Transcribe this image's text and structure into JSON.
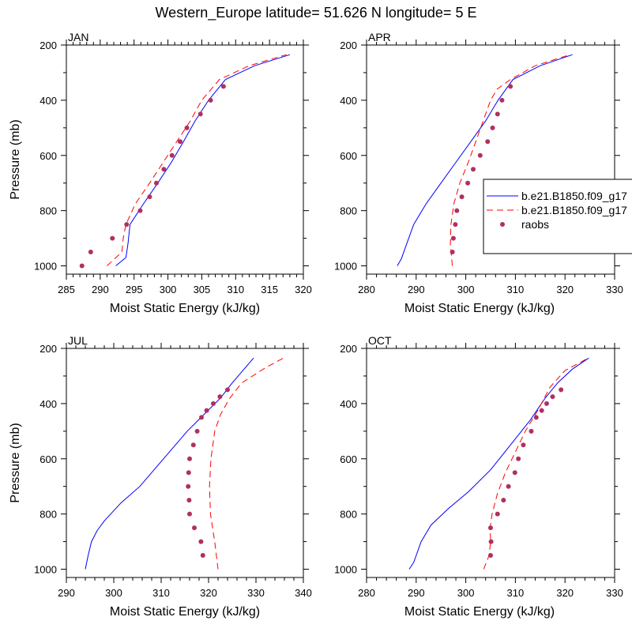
{
  "title": "Western_Europe  latitude= 51.626 N longitude= 5 E",
  "legend": {
    "entries": [
      "b.e21.B1850.f09_g17",
      "b.e21.B1850.f09_g17",
      "raobs"
    ]
  },
  "colors": {
    "model1": "#0000ff",
    "model2": "#ff0000",
    "raobs": "#b03060",
    "axes": "#000000"
  },
  "chart_data": [
    {
      "type": "line",
      "panel": "JAN",
      "title": "JAN",
      "xlabel": "Moist Static Energy (kJ/kg)",
      "ylabel": "Pressure (mb)",
      "xlim": [
        285,
        320
      ],
      "xticks": [
        285,
        290,
        295,
        300,
        305,
        310,
        315,
        320
      ],
      "ylim": [
        1030,
        200
      ],
      "yticks": [
        200,
        400,
        600,
        800,
        1000
      ],
      "grid": false,
      "series": [
        {
          "name": "b.e21.B1850.f09_g17",
          "style": "solid",
          "color": "#0000ff",
          "x": [
            292.3,
            293.8,
            294.1,
            294.4,
            296.4,
            298.5,
            300.5,
            302.3,
            304.0,
            306.0,
            308.5,
            312.8,
            318.0
          ],
          "y": [
            1000,
            970,
            920,
            850,
            775,
            700,
            625,
            550,
            475,
            400,
            325,
            275,
            235
          ]
        },
        {
          "name": "b.e21.B1850.f09_g17",
          "style": "dashed",
          "color": "#ff0000",
          "x": [
            291.0,
            293.2,
            293.4,
            293.8,
            295.2,
            297.3,
            299.3,
            301.3,
            303.3,
            305.0,
            307.6,
            312.0,
            317.5
          ],
          "y": [
            1000,
            950,
            900,
            850,
            775,
            700,
            625,
            550,
            475,
            400,
            325,
            275,
            235
          ]
        },
        {
          "name": "raobs",
          "style": "markers",
          "color": "#b03060",
          "x": [
            287.3,
            288.6,
            291.8,
            293.9,
            295.9,
            297.3,
            298.3,
            299.4,
            300.6,
            301.8,
            302.8,
            304.8,
            306.3,
            308.2
          ],
          "y": [
            1000,
            950,
            900,
            850,
            800,
            750,
            700,
            650,
            600,
            550,
            500,
            450,
            400,
            350
          ]
        }
      ]
    },
    {
      "type": "line",
      "panel": "APR",
      "title": "APR",
      "xlabel": "Moist Static Energy (kJ/kg)",
      "ylabel": "",
      "xlim": [
        280,
        330
      ],
      "xticks": [
        280,
        290,
        300,
        310,
        320,
        330
      ],
      "ylim": [
        1030,
        200
      ],
      "yticks": [
        200,
        400,
        600,
        800,
        1000
      ],
      "grid": false,
      "series": [
        {
          "name": "b.e21.B1850.f09_g17",
          "style": "solid",
          "color": "#0000ff",
          "x": [
            286.2,
            287.0,
            288.0,
            289.5,
            292.0,
            295.0,
            298.0,
            301.0,
            304.0,
            306.5,
            309.5,
            315.0,
            321.5
          ],
          "y": [
            1000,
            975,
            925,
            850,
            775,
            700,
            625,
            550,
            475,
            400,
            325,
            275,
            235
          ]
        },
        {
          "name": "b.e21.B1850.f09_g17",
          "style": "dashed",
          "color": "#ff0000",
          "x": [
            297.3,
            296.9,
            297.0,
            297.6,
            298.8,
            300.5,
            302.0,
            303.5,
            305.0,
            306.3,
            309.0,
            314.0,
            321.0
          ],
          "y": [
            1000,
            925,
            850,
            775,
            700,
            625,
            550,
            475,
            400,
            360,
            325,
            275,
            235
          ]
        },
        {
          "name": "raobs",
          "style": "markers",
          "color": "#b03060",
          "x": [
            297.3,
            297.5,
            297.9,
            298.2,
            299.2,
            300.4,
            301.5,
            302.9,
            304.4,
            305.4,
            306.4,
            307.3,
            309.0
          ],
          "y": [
            950,
            900,
            850,
            800,
            750,
            700,
            650,
            600,
            550,
            500,
            450,
            400,
            350
          ]
        }
      ]
    },
    {
      "type": "line",
      "panel": "JUL",
      "title": "JUL",
      "xlabel": "Moist Static Energy (kJ/kg)",
      "ylabel": "Pressure (mb)",
      "xlim": [
        290,
        340
      ],
      "xticks": [
        290,
        300,
        310,
        320,
        330,
        340
      ],
      "ylim": [
        1030,
        200
      ],
      "yticks": [
        200,
        400,
        600,
        800,
        1000
      ],
      "grid": false,
      "series": [
        {
          "name": "b.e21.B1850.f09_g17",
          "style": "solid",
          "color": "#0000ff",
          "x": [
            294.0,
            294.6,
            295.3,
            296.5,
            298.0,
            301.5,
            305.5,
            309.0,
            312.5,
            315.5,
            319.0,
            322.5,
            325.0,
            329.5
          ],
          "y": [
            1000,
            950,
            900,
            860,
            825,
            760,
            700,
            630,
            560,
            500,
            440,
            380,
            325,
            235
          ]
        },
        {
          "name": "b.e21.B1850.f09_g17",
          "style": "dashed",
          "color": "#ff0000",
          "x": [
            322.0,
            321.3,
            320.4,
            320.2,
            320.5,
            321.3,
            322.5,
            324.5,
            327.0,
            332.0,
            335.8
          ],
          "y": [
            1000,
            900,
            800,
            700,
            600,
            500,
            440,
            380,
            325,
            270,
            235
          ]
        },
        {
          "name": "raobs",
          "style": "markers",
          "color": "#b03060",
          "x": [
            318.8,
            318.4,
            317.0,
            316.0,
            315.9,
            315.7,
            315.8,
            316.0,
            316.8,
            317.6,
            318.5,
            319.6,
            321.0,
            322.4,
            324.0
          ],
          "y": [
            950,
            900,
            850,
            800,
            750,
            700,
            650,
            600,
            550,
            500,
            450,
            425,
            400,
            375,
            350
          ]
        }
      ]
    },
    {
      "type": "line",
      "panel": "OCT",
      "title": "OCT",
      "xlabel": "Moist Static Energy (kJ/kg)",
      "ylabel": "",
      "xlim": [
        280,
        330
      ],
      "xticks": [
        280,
        290,
        300,
        310,
        320,
        330
      ],
      "ylim": [
        1030,
        200
      ],
      "yticks": [
        200,
        400,
        600,
        800,
        1000
      ],
      "grid": false,
      "series": [
        {
          "name": "b.e21.B1850.f09_g17",
          "style": "solid",
          "color": "#0000ff",
          "x": [
            288.6,
            289.5,
            290.2,
            291.0,
            293.0,
            296.5,
            300.5,
            305.0,
            309.0,
            313.0,
            316.0,
            318.5,
            321.5,
            324.8
          ],
          "y": [
            1000,
            975,
            940,
            900,
            840,
            780,
            720,
            640,
            550,
            460,
            380,
            325,
            275,
            235
          ]
        },
        {
          "name": "b.e21.B1850.f09_g17",
          "style": "dashed",
          "color": "#ff0000",
          "x": [
            303.6,
            304.7,
            305.0,
            304.9,
            305.3,
            306.4,
            308.0,
            310.0,
            312.0,
            314.5,
            317.0,
            320.0,
            324.7
          ],
          "y": [
            1000,
            950,
            900,
            850,
            800,
            725,
            650,
            575,
            500,
            425,
            340,
            280,
            235
          ]
        },
        {
          "name": "raobs",
          "style": "markers",
          "color": "#b03060",
          "x": [
            305.0,
            305.1,
            305.0,
            306.4,
            307.6,
            308.6,
            309.9,
            310.6,
            311.6,
            313.2,
            314.2,
            315.3,
            316.3,
            317.5,
            319.2
          ],
          "y": [
            950,
            900,
            850,
            800,
            750,
            700,
            650,
            600,
            550,
            500,
            450,
            425,
            400,
            375,
            350
          ]
        }
      ]
    }
  ]
}
